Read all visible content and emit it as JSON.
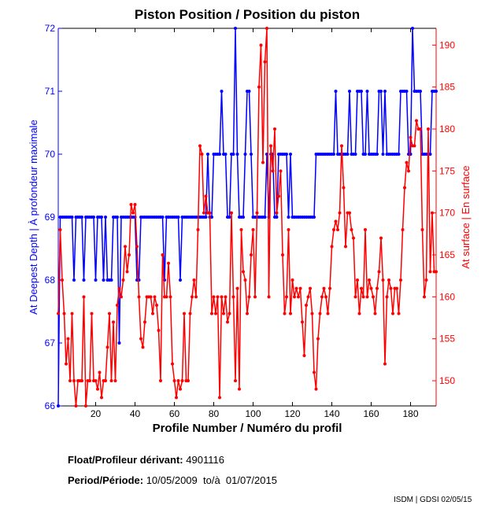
{
  "chart_data": {
    "type": "line",
    "title": "Piston Position / Position du piston",
    "xlabel": "Profile Number / Numéro du profil",
    "ylabel_left": "At Deepest Depth | À profondeur maximale",
    "ylabel_right": "At surface | En surface",
    "xlim": [
      1,
      193
    ],
    "ylim_left": [
      66,
      72
    ],
    "ylim_right": [
      147,
      192
    ],
    "xticks": [
      20,
      40,
      60,
      80,
      100,
      120,
      140,
      160,
      180
    ],
    "yticks_left": [
      66,
      67,
      68,
      69,
      70,
      71,
      72
    ],
    "yticks_right": [
      150,
      155,
      160,
      165,
      170,
      175,
      180,
      185,
      190
    ],
    "grid": false,
    "series": [
      {
        "name": "At Deepest Depth",
        "axis": "left",
        "color": "#0000ff",
        "values": [
          66,
          69,
          69,
          69,
          69,
          69,
          69,
          69,
          68,
          69,
          69,
          69,
          69,
          68,
          69,
          69,
          69,
          69,
          69,
          68,
          69,
          69,
          69,
          68,
          69,
          68,
          68,
          68,
          69,
          69,
          69,
          67,
          69,
          69,
          69,
          69,
          69,
          69,
          69,
          69,
          68,
          68,
          69,
          69,
          69,
          69,
          69,
          69,
          69,
          69,
          69,
          69,
          69,
          69,
          68,
          69,
          69,
          69,
          69,
          69,
          69,
          69,
          68,
          69,
          69,
          69,
          69,
          69,
          69,
          69,
          69,
          69,
          69,
          69,
          69,
          69,
          70,
          69,
          69,
          70,
          70,
          70,
          70,
          71,
          70,
          70,
          69,
          69,
          70,
          70,
          72,
          70,
          69,
          69,
          69,
          70,
          71,
          71,
          70,
          69,
          69,
          69,
          69,
          69,
          69,
          69,
          70,
          69,
          70,
          70,
          69,
          69,
          70,
          70,
          70,
          70,
          70,
          69,
          70,
          69,
          69,
          69,
          69,
          69,
          69,
          69,
          69,
          69,
          69,
          69,
          69,
          70,
          70,
          70,
          70,
          70,
          70,
          70,
          70,
          70,
          70,
          71,
          70,
          70,
          70,
          70,
          70,
          70,
          71,
          70,
          70,
          70,
          71,
          71,
          71,
          70,
          70,
          71,
          70,
          70,
          70,
          70,
          70,
          71,
          71,
          70,
          71,
          70,
          70,
          70,
          70,
          70,
          70,
          70,
          71,
          71,
          71,
          71,
          70,
          70,
          72,
          71,
          71,
          71,
          71,
          70,
          70,
          70,
          70,
          70,
          71,
          71,
          71
        ]
      },
      {
        "name": "At surface",
        "axis": "right",
        "color": "#ff0000",
        "values": [
          158,
          168,
          162,
          158,
          152,
          155,
          150,
          158,
          150,
          147,
          150,
          150,
          150,
          160,
          147,
          150,
          150,
          158,
          150,
          150,
          149,
          151,
          148,
          150,
          150,
          154,
          158,
          150,
          157,
          150,
          159,
          161,
          160,
          162,
          166,
          163,
          165,
          171,
          170,
          171,
          166,
          160,
          155,
          154,
          157,
          160,
          160,
          160,
          158,
          160,
          159,
          156,
          150,
          165,
          160,
          160,
          164,
          160,
          152,
          150,
          148,
          150,
          149,
          150,
          158,
          150,
          150,
          158,
          160,
          162,
          160,
          168,
          178,
          177,
          170,
          172,
          170,
          170,
          158,
          160,
          158,
          160,
          148,
          160,
          158,
          160,
          157,
          158,
          170,
          160,
          150,
          161,
          149,
          168,
          163,
          162,
          158,
          160,
          165,
          168,
          160,
          170,
          185,
          190,
          176,
          188,
          192,
          160,
          178,
          175,
          180,
          170,
          172,
          175,
          165,
          158,
          160,
          168,
          158,
          162,
          160,
          161,
          160,
          161,
          157,
          153,
          159,
          160,
          161,
          158,
          151,
          149,
          155,
          158,
          160,
          161,
          160,
          158,
          161,
          166,
          168,
          169,
          168,
          170,
          178,
          173,
          166,
          170,
          170,
          168,
          167,
          160,
          162,
          158,
          161,
          160,
          168,
          160,
          162,
          161,
          160,
          158,
          161,
          163,
          167,
          162,
          152,
          160,
          162,
          161,
          158,
          161,
          161,
          158,
          162,
          168,
          173,
          176,
          175,
          179,
          178,
          178,
          181,
          180,
          180,
          168,
          160,
          162,
          180,
          163,
          170,
          163,
          163
        ]
      }
    ]
  },
  "footer": {
    "float_label": "Float/Profileur dérivant:",
    "float_value": "4901116",
    "period_label": "Period/Période:",
    "period_value": "10/05/2009  to/à  01/07/2015",
    "credit": "ISDM | GDSI 02/05/15"
  }
}
